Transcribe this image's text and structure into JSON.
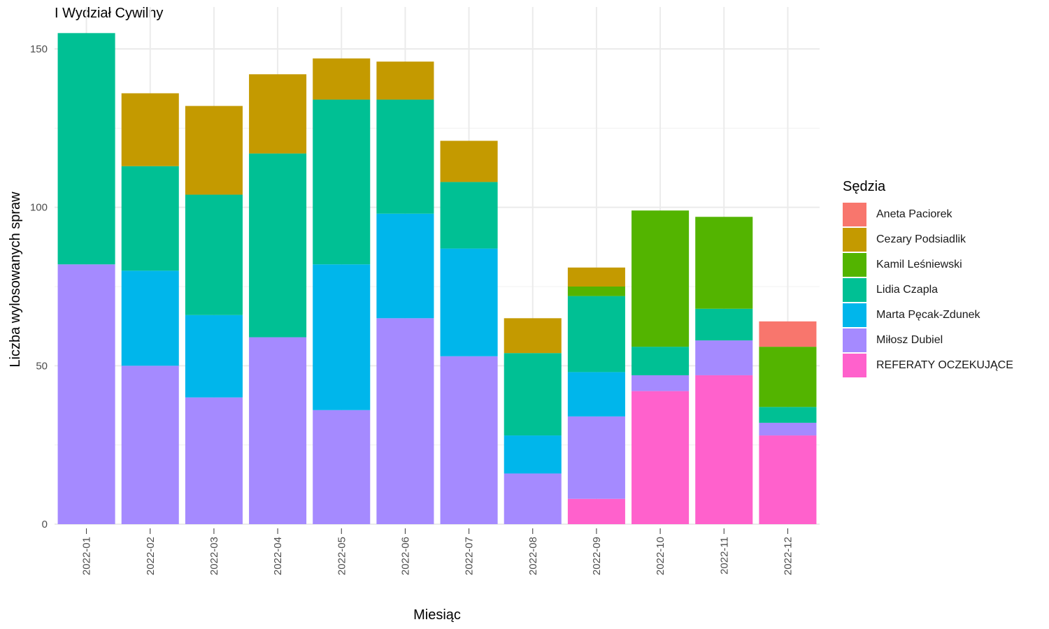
{
  "chart_data": {
    "type": "bar",
    "stacked": true,
    "title": "I Wydział Cywilny",
    "xlabel": "Miesiąc",
    "ylabel": "Liczba wylosowanych spraw",
    "ylim": [
      0,
      160
    ],
    "yticks": [
      0,
      50,
      100,
      150
    ],
    "grid": true,
    "legend_title": "Sędzia",
    "legend_position": "right",
    "categories": [
      "2022-01",
      "2022-02",
      "2022-03",
      "2022-04",
      "2022-05",
      "2022-06",
      "2022-07",
      "2022-08",
      "2022-09",
      "2022-10",
      "2022-11",
      "2022-12"
    ],
    "series": [
      {
        "name": "REFERATY OCZEKUJĄCE",
        "color": "#FF61CC",
        "values": [
          0,
          0,
          0,
          0,
          0,
          0,
          0,
          0,
          8,
          42,
          47,
          28
        ]
      },
      {
        "name": "Miłosz Dubiel",
        "color": "#A58AFF",
        "values": [
          82,
          50,
          40,
          59,
          36,
          65,
          53,
          16,
          26,
          5,
          11,
          4
        ]
      },
      {
        "name": "Marta Pęcak-Zdunek",
        "color": "#00B6EB",
        "values": [
          0,
          30,
          26,
          0,
          46,
          33,
          34,
          12,
          14,
          0,
          0,
          0
        ]
      },
      {
        "name": "Lidia Czapla",
        "color": "#00C094",
        "values": [
          73,
          33,
          38,
          58,
          52,
          36,
          21,
          26,
          24,
          9,
          10,
          5
        ]
      },
      {
        "name": "Kamil Leśniewski",
        "color": "#53B400",
        "values": [
          0,
          0,
          0,
          0,
          0,
          0,
          0,
          0,
          3,
          43,
          29,
          19
        ]
      },
      {
        "name": "Cezary Podsiadlik",
        "color": "#C49A00",
        "values": [
          0,
          23,
          28,
          25,
          13,
          12,
          13,
          11,
          6,
          0,
          0,
          0
        ]
      },
      {
        "name": "Aneta Paciorek",
        "color": "#F8766D",
        "values": [
          0,
          0,
          0,
          0,
          0,
          0,
          0,
          0,
          0,
          0,
          0,
          8
        ]
      }
    ],
    "legend_order": [
      "Aneta Paciorek",
      "Cezary Podsiadlik",
      "Kamil Leśniewski",
      "Lidia Czapla",
      "Marta Pęcak-Zdunek",
      "Miłosz Dubiel",
      "REFERATY OCZEKUJĄCE"
    ]
  }
}
